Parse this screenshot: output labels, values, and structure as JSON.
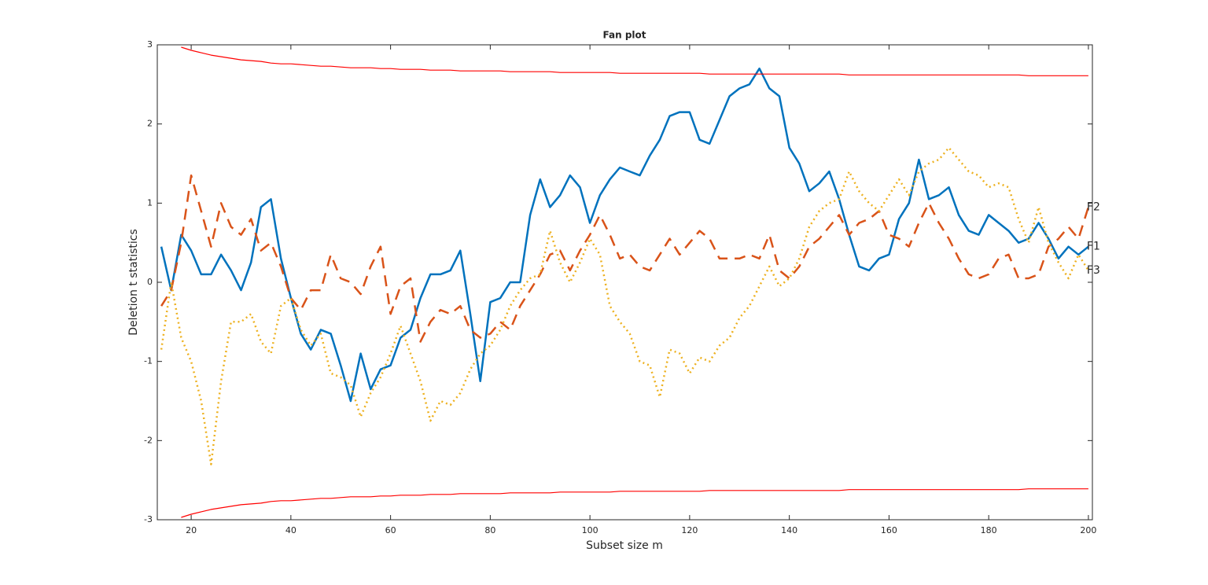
{
  "chart_data": {
    "type": "line",
    "title": "Fan plot",
    "x_label": "Subset size m",
    "y_label": "Deletion t statistics",
    "xlim": [
      13.2,
      200.8
    ],
    "ylim": [
      -3,
      3
    ],
    "xticks": [
      20,
      40,
      60,
      80,
      100,
      120,
      140,
      160,
      180,
      200
    ],
    "yticks": [
      -3,
      -2,
      -1,
      0,
      1,
      2,
      3
    ],
    "x": [
      14,
      16,
      18,
      20,
      22,
      24,
      26,
      28,
      30,
      32,
      34,
      36,
      38,
      40,
      42,
      44,
      46,
      48,
      50,
      52,
      54,
      56,
      58,
      60,
      62,
      64,
      66,
      68,
      70,
      72,
      74,
      76,
      78,
      80,
      82,
      84,
      86,
      88,
      90,
      92,
      94,
      96,
      98,
      100,
      102,
      104,
      106,
      108,
      110,
      112,
      114,
      116,
      118,
      120,
      122,
      124,
      126,
      128,
      130,
      132,
      134,
      136,
      138,
      140,
      142,
      144,
      146,
      148,
      150,
      152,
      154,
      156,
      158,
      160,
      162,
      164,
      166,
      168,
      170,
      172,
      174,
      176,
      178,
      180,
      182,
      184,
      186,
      188,
      190,
      192,
      194,
      196,
      198,
      200
    ],
    "series": [
      {
        "name": "F1",
        "color": "#0072bd",
        "line_style": "solid",
        "values": [
          0.45,
          -0.1,
          0.6,
          0.4,
          0.1,
          0.1,
          0.35,
          0.15,
          -0.1,
          0.25,
          0.95,
          1.05,
          0.3,
          -0.2,
          -0.65,
          -0.85,
          -0.6,
          -0.65,
          -1.05,
          -1.5,
          -0.9,
          -1.35,
          -1.1,
          -1.05,
          -0.7,
          -0.6,
          -0.2,
          0.1,
          0.1,
          0.15,
          0.4,
          -0.4,
          -1.25,
          -0.25,
          -0.2,
          0,
          0,
          0.85,
          1.3,
          0.95,
          1.1,
          1.35,
          1.2,
          0.75,
          1.1,
          1.3,
          1.45,
          1.4,
          1.35,
          1.6,
          1.8,
          2.1,
          2.15,
          2.15,
          1.8,
          1.75,
          2.05,
          2.35,
          2.45,
          2.5,
          2.7,
          2.45,
          2.35,
          1.7,
          1.5,
          1.15,
          1.25,
          1.4,
          1.05,
          0.6,
          0.2,
          0.15,
          0.3,
          0.35,
          0.8,
          1.0,
          1.55,
          1.05,
          1.1,
          1.2,
          0.85,
          0.65,
          0.6,
          0.85,
          0.75,
          0.65,
          0.5,
          0.55,
          0.75,
          0.55,
          0.3,
          0.45,
          0.35,
          0.45
        ]
      },
      {
        "name": "F2",
        "color": "#d95319",
        "line_style": "dashed",
        "values": [
          -0.3,
          -0.1,
          0.5,
          1.35,
          0.9,
          0.45,
          1.0,
          0.7,
          0.6,
          0.8,
          0.4,
          0.5,
          0.2,
          -0.2,
          -0.35,
          -0.1,
          -0.1,
          0.35,
          0.05,
          0.0,
          -0.15,
          0.2,
          0.45,
          -0.4,
          -0.05,
          0.05,
          -0.75,
          -0.5,
          -0.35,
          -0.4,
          -0.3,
          -0.6,
          -0.7,
          -0.65,
          -0.5,
          -0.6,
          -0.3,
          -0.1,
          0.1,
          0.35,
          0.4,
          0.15,
          0.4,
          0.6,
          0.85,
          0.6,
          0.3,
          0.35,
          0.2,
          0.15,
          0.35,
          0.55,
          0.35,
          0.5,
          0.65,
          0.55,
          0.3,
          0.3,
          0.3,
          0.35,
          0.3,
          0.6,
          0.15,
          0.05,
          0.2,
          0.45,
          0.55,
          0.7,
          0.85,
          0.6,
          0.75,
          0.8,
          0.9,
          0.6,
          0.55,
          0.45,
          0.75,
          1.0,
          0.75,
          0.55,
          0.3,
          0.1,
          0.05,
          0.1,
          0.3,
          0.35,
          0.05,
          0.05,
          0.1,
          0.45,
          0.55,
          0.7,
          0.55,
          0.95
        ]
      },
      {
        "name": "F3",
        "color": "#edb120",
        "line_style": "dotted",
        "values": [
          -0.85,
          0.0,
          -0.7,
          -1.0,
          -1.5,
          -2.3,
          -1.25,
          -0.5,
          -0.5,
          -0.4,
          -0.75,
          -0.9,
          -0.3,
          -0.2,
          -0.6,
          -0.8,
          -0.65,
          -1.15,
          -1.2,
          -1.3,
          -1.7,
          -1.4,
          -1.2,
          -0.9,
          -0.55,
          -0.9,
          -1.25,
          -1.75,
          -1.5,
          -1.55,
          -1.4,
          -1.1,
          -0.9,
          -0.8,
          -0.6,
          -0.3,
          -0.1,
          0.05,
          0.1,
          0.65,
          0.25,
          0.0,
          0.25,
          0.55,
          0.35,
          -0.3,
          -0.5,
          -0.65,
          -1.0,
          -1.05,
          -1.45,
          -0.85,
          -0.9,
          -1.15,
          -0.95,
          -1.0,
          -0.8,
          -0.7,
          -0.45,
          -0.3,
          -0.05,
          0.2,
          -0.05,
          0.05,
          0.3,
          0.7,
          0.9,
          1.0,
          1.05,
          1.4,
          1.15,
          1.0,
          0.9,
          1.1,
          1.3,
          1.1,
          1.4,
          1.5,
          1.55,
          1.7,
          1.55,
          1.4,
          1.35,
          1.2,
          1.25,
          1.2,
          0.8,
          0.5,
          0.95,
          0.5,
          0.25,
          0.05,
          0.35,
          0.15
        ]
      },
      {
        "color": "#ff0000",
        "line_style": "thin",
        "values": [
          null,
          null,
          2.97,
          2.93,
          2.9,
          2.87,
          2.85,
          2.83,
          2.81,
          2.8,
          2.79,
          2.77,
          2.76,
          2.76,
          2.75,
          2.74,
          2.73,
          2.73,
          2.72,
          2.71,
          2.71,
          2.71,
          2.7,
          2.7,
          2.69,
          2.69,
          2.69,
          2.68,
          2.68,
          2.68,
          2.67,
          2.67,
          2.67,
          2.67,
          2.67,
          2.66,
          2.66,
          2.66,
          2.66,
          2.66,
          2.65,
          2.65,
          2.65,
          2.65,
          2.65,
          2.65,
          2.64,
          2.64,
          2.64,
          2.64,
          2.64,
          2.64,
          2.64,
          2.64,
          2.64,
          2.63,
          2.63,
          2.63,
          2.63,
          2.63,
          2.63,
          2.63,
          2.63,
          2.63,
          2.63,
          2.63,
          2.63,
          2.63,
          2.63,
          2.62,
          2.62,
          2.62,
          2.62,
          2.62,
          2.62,
          2.62,
          2.62,
          2.62,
          2.62,
          2.62,
          2.62,
          2.62,
          2.62,
          2.62,
          2.62,
          2.62,
          2.62,
          2.61,
          2.61,
          2.61,
          2.61,
          2.61,
          2.61,
          2.61
        ]
      },
      {
        "color": "#ff0000",
        "line_style": "thin",
        "values": [
          null,
          null,
          -2.97,
          -2.93,
          -2.9,
          -2.87,
          -2.85,
          -2.83,
          -2.81,
          -2.8,
          -2.79,
          -2.77,
          -2.76,
          -2.76,
          -2.75,
          -2.74,
          -2.73,
          -2.73,
          -2.72,
          -2.71,
          -2.71,
          -2.71,
          -2.7,
          -2.7,
          -2.69,
          -2.69,
          -2.69,
          -2.68,
          -2.68,
          -2.68,
          -2.67,
          -2.67,
          -2.67,
          -2.67,
          -2.67,
          -2.66,
          -2.66,
          -2.66,
          -2.66,
          -2.66,
          -2.65,
          -2.65,
          -2.65,
          -2.65,
          -2.65,
          -2.65,
          -2.64,
          -2.64,
          -2.64,
          -2.64,
          -2.64,
          -2.64,
          -2.64,
          -2.64,
          -2.64,
          -2.63,
          -2.63,
          -2.63,
          -2.63,
          -2.63,
          -2.63,
          -2.63,
          -2.63,
          -2.63,
          -2.63,
          -2.63,
          -2.63,
          -2.63,
          -2.63,
          -2.62,
          -2.62,
          -2.62,
          -2.62,
          -2.62,
          -2.62,
          -2.62,
          -2.62,
          -2.62,
          -2.62,
          -2.62,
          -2.62,
          -2.62,
          -2.62,
          -2.62,
          -2.62,
          -2.62,
          -2.62,
          -2.61,
          -2.61,
          -2.61,
          -2.61,
          -2.61,
          -2.61,
          -2.61
        ]
      }
    ]
  }
}
